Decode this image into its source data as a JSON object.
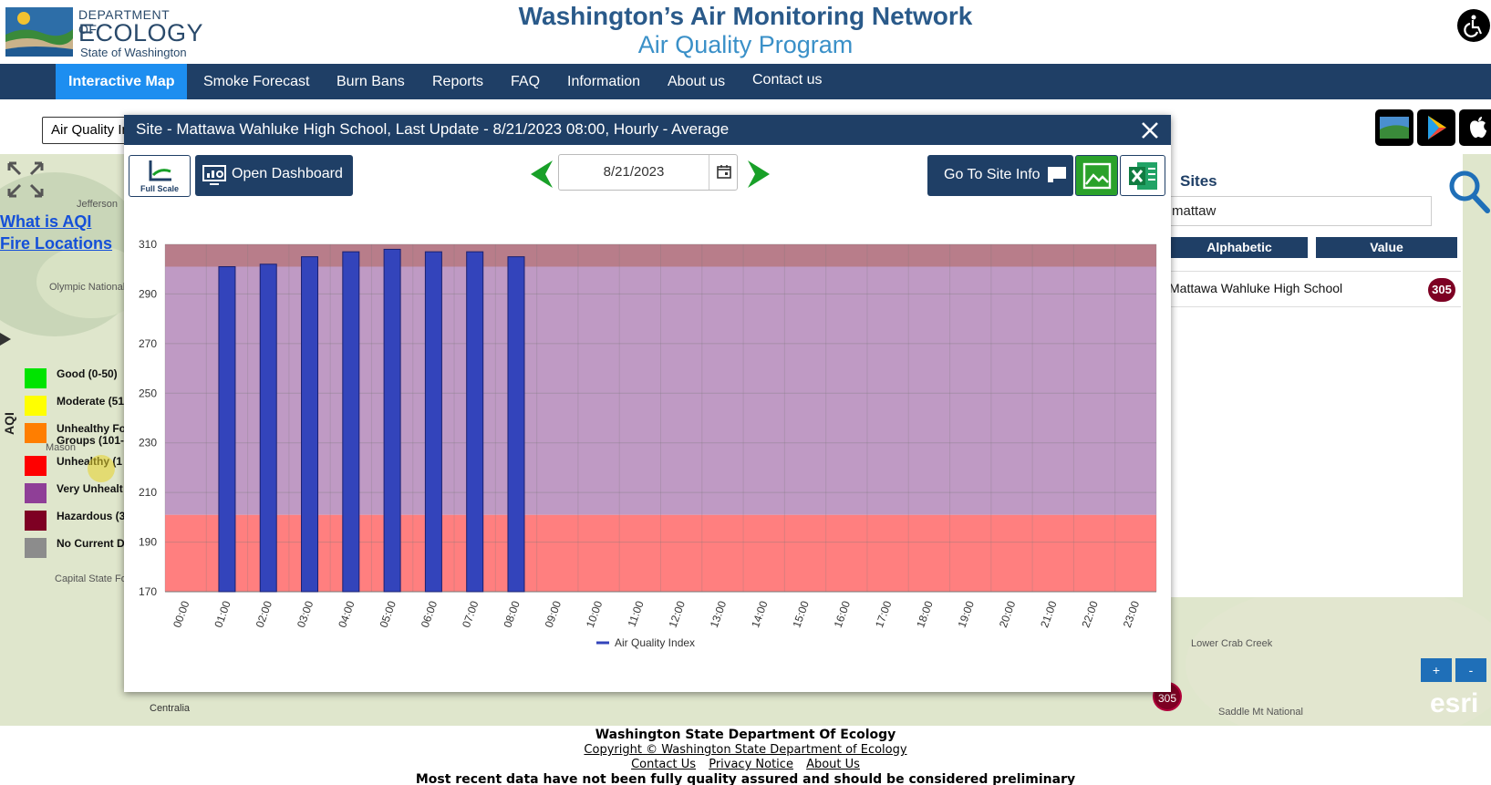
{
  "header": {
    "logo": {
      "line1": "DEPARTMENT OF",
      "line2": "ECOLOGY",
      "line3": "State of Washington"
    },
    "title": "Washington’s Air Monitoring Network",
    "subtitle": "Air Quality Program"
  },
  "nav": {
    "items": [
      {
        "label": "Interactive Map",
        "active": true
      },
      {
        "label": "Smoke Forecast"
      },
      {
        "label": "Burn Bans"
      },
      {
        "label": "Reports"
      },
      {
        "label": "FAQ"
      },
      {
        "label": "Information"
      },
      {
        "label": "About us"
      },
      {
        "label": "Contact us"
      }
    ]
  },
  "toolbar": {
    "parameter_select_value": "Air Quality In",
    "app_icons": [
      "washington-map-app-icon",
      "google-play-icon",
      "apple-icon"
    ]
  },
  "map": {
    "links": [
      "What is AQI",
      "Fire Locations"
    ],
    "aqi_axis_label": "AQI",
    "legend": [
      {
        "label": "Good (0-50)",
        "color": "#00e400"
      },
      {
        "label": "Moderate (51",
        "color": "#ffff00"
      },
      {
        "label": "Unhealthy Fo\nGroups (101-",
        "color": "#ff7e00"
      },
      {
        "label": "Unhealthy (1",
        "color": "#ff0000"
      },
      {
        "label": "Very Unhealt",
        "color": "#8f3f97"
      },
      {
        "label": "Hazardous (3",
        "color": "#7e0023"
      },
      {
        "label": "No Current D",
        "color": "#8c8c8c"
      }
    ],
    "place_labels": [
      "Olympic\nNational\nForest",
      "Mason",
      "Capital\nState\nForest",
      "Centralia",
      "Saddle\nMt National",
      "Lower Crab Creek",
      "Jefferson"
    ],
    "marker_value": "305",
    "zoom_in": "+",
    "zoom_out": "-",
    "attribution": "esri"
  },
  "sites_panel": {
    "title": "Sites",
    "search_value": "mattaw",
    "sort_buttons": [
      "Alphabetic",
      "Value"
    ],
    "results": [
      {
        "name": "Mattawa Wahluke High School",
        "value": "305"
      }
    ]
  },
  "modal": {
    "title": "Site - Mattawa Wahluke High School, Last Update - 8/21/2023 08:00, Hourly - Average",
    "full_scale_label": "Full Scale",
    "dashboard_label": "Open Dashboard",
    "date": "8/21/2023",
    "site_info_label": "Go To Site Info"
  },
  "chart_data": {
    "type": "bar",
    "categories": [
      "00:00",
      "01:00",
      "02:00",
      "03:00",
      "04:00",
      "05:00",
      "06:00",
      "07:00",
      "08:00",
      "09:00",
      "10:00",
      "11:00",
      "12:00",
      "13:00",
      "14:00",
      "15:00",
      "16:00",
      "17:00",
      "18:00",
      "19:00",
      "20:00",
      "21:00",
      "22:00",
      "23:00"
    ],
    "series": [
      {
        "name": "Air Quality Index",
        "values": [
          null,
          301,
          302,
          305,
          307,
          308,
          307,
          307,
          305,
          null,
          null,
          null,
          null,
          null,
          null,
          null,
          null,
          null,
          null,
          null,
          null,
          null,
          null,
          null
        ],
        "color": "#3344bb"
      }
    ],
    "ylim": [
      170,
      310
    ],
    "yticks": [
      170,
      190,
      210,
      230,
      250,
      270,
      290,
      310
    ],
    "bands": [
      {
        "from": 170,
        "to": 201,
        "color": "#ff7f7f"
      },
      {
        "from": 201,
        "to": 301,
        "color": "#bf9ac4"
      },
      {
        "from": 301,
        "to": 310,
        "color": "#b87d8a"
      }
    ],
    "grid": true,
    "legend_position": "bottom"
  },
  "footer": {
    "org": "Washington State Department Of Ecology",
    "copyright": "Copyright © Washington State Department of Ecology",
    "links": [
      "Contact Us",
      "Privacy Notice",
      "About Us"
    ],
    "disclaimer": "Most recent data have not been fully quality assured and should be considered preliminary"
  }
}
